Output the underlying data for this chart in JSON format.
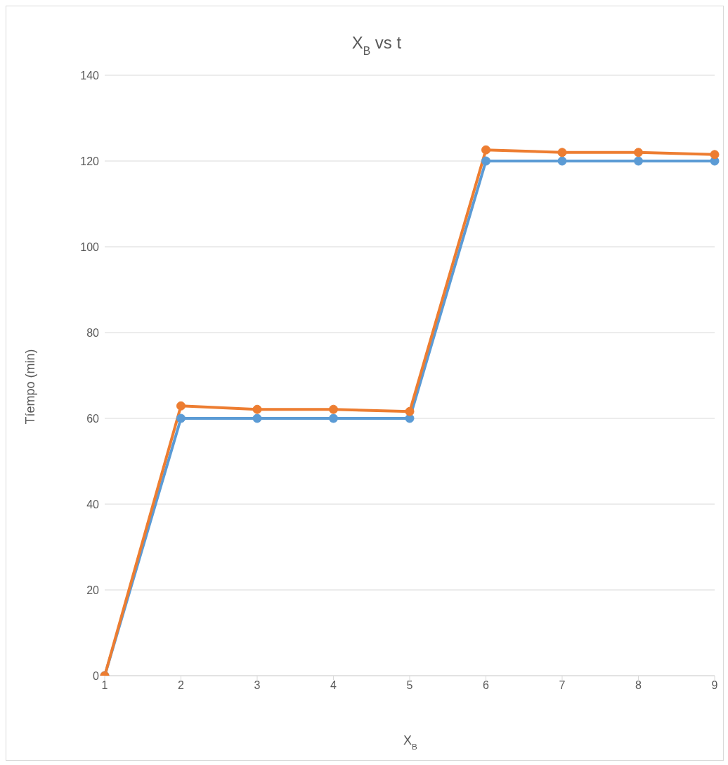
{
  "chart_data": {
    "type": "line",
    "title": "X$_{B}$ vs t",
    "xlabel": "X$_{B}$",
    "ylabel": "Tíempo (min)",
    "categories": [
      "1",
      "2",
      "3",
      "4",
      "5",
      "6",
      "7",
      "8",
      "9"
    ],
    "series": [
      {
        "color": "#5b9bd5",
        "values": [
          0,
          60,
          60,
          60,
          60,
          120,
          120,
          120,
          120
        ]
      },
      {
        "color": "#ed7d31",
        "values": [
          0,
          62.9,
          62.1,
          62.1,
          61.6,
          122.6,
          122,
          122,
          121.5
        ]
      }
    ],
    "ylim": [
      0,
      140
    ],
    "yticks": [
      0,
      20,
      40,
      60,
      80,
      100,
      120,
      140
    ],
    "grid": "y",
    "legend": false,
    "marker": "circle",
    "line_style": "solid"
  }
}
